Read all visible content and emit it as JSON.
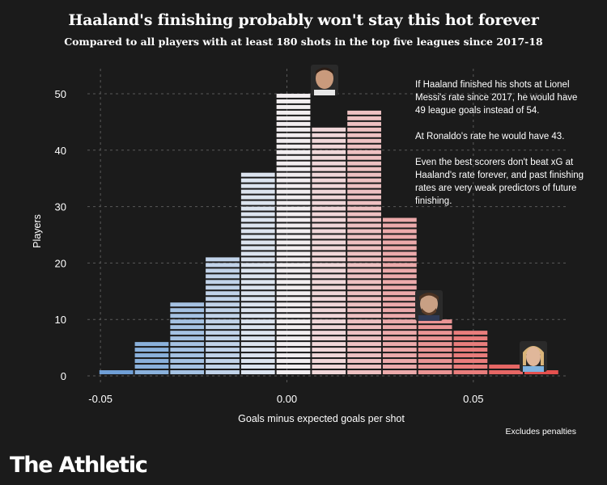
{
  "header": {
    "title": "Haaland's finishing probably won't stay this hot forever",
    "subtitle": "Compared to all players with at least 180 shots in the top five leagues since 2017-18"
  },
  "annotations": {
    "p1": "If Haaland finished his shots at Lionel Messi's rate since 2017, he would have 49 league goals instead of 54.",
    "p2": "At Ronaldo's rate he would have 43.",
    "p3": "Even the best scorers don't beat xG at Haaland's rate forever, and past finishing rates are very weak predictors of future finishing."
  },
  "footnote": "Excludes penalties",
  "brand": "The Athletic",
  "players": [
    {
      "name": "Ronaldo",
      "icon": "ronaldo-face-icon",
      "x": 0.01,
      "y": 50
    },
    {
      "name": "Messi",
      "icon": "messi-face-icon",
      "x": 0.038,
      "y": 10
    },
    {
      "name": "Haaland",
      "icon": "haaland-face-icon",
      "x": 0.066,
      "y": 1
    }
  ],
  "chart_data": {
    "type": "bar",
    "xlabel": "Goals minus expected goals per shot",
    "ylabel": "Players",
    "xlim": [
      -0.0535,
      0.075
    ],
    "ylim": [
      0,
      53
    ],
    "xticks": [
      -0.05,
      0.0,
      0.05
    ],
    "xtick_labels": [
      "-0.05",
      "0.00",
      "0.05"
    ],
    "yticks": [
      0,
      10,
      20,
      30,
      40,
      50
    ],
    "ytick_labels": [
      "0",
      "10",
      "20",
      "30",
      "40",
      "50"
    ],
    "grid": true,
    "bin_width": 0.0095,
    "bin_starts": [
      -0.0505,
      -0.041,
      -0.0315,
      -0.022,
      -0.0125,
      -0.003,
      0.0065,
      0.016,
      0.0255,
      0.035,
      0.0445,
      0.054,
      0.0635
    ],
    "values": [
      1,
      6,
      13,
      21,
      36,
      50,
      44,
      47,
      28,
      10,
      8,
      2,
      1
    ],
    "colors": {
      "negative": "#6e9fd6",
      "neutral": "#f2f2f4",
      "positive": "#e5514f",
      "stripe": "#1b1b1b",
      "grid": "#5a5a5a"
    }
  }
}
